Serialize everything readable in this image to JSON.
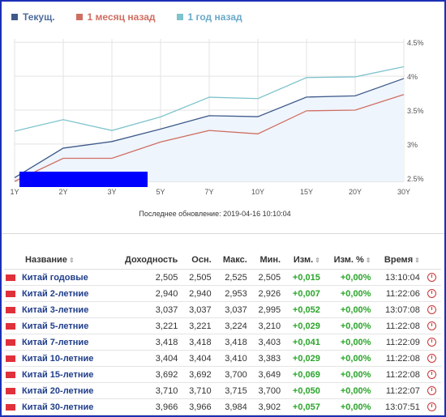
{
  "legend": {
    "current": "Текущ.",
    "month": "1 месяц назад",
    "year": "1 год назад"
  },
  "colors": {
    "current": "#3f5a8a",
    "month": "#d06e62",
    "year": "#7ec4cc",
    "area": "#eef5fd",
    "redaction": "#0000ff",
    "positive": "#2aa52a",
    "flag": "#e0303a"
  },
  "chart_data": {
    "type": "line",
    "categories": [
      "1Y",
      "2Y",
      "3Y",
      "5Y",
      "7Y",
      "10Y",
      "15Y",
      "20Y",
      "30Y"
    ],
    "y_ticks": [
      "4.5%",
      "4%",
      "3.5%",
      "3%",
      "2.5%"
    ],
    "ylim": [
      2.45,
      4.55
    ],
    "grid": true,
    "series": [
      {
        "name": "Текущ.",
        "key": "current",
        "values": [
          2.505,
          2.94,
          3.037,
          3.221,
          3.418,
          3.404,
          3.692,
          3.71,
          3.966
        ]
      },
      {
        "name": "1 месяц назад",
        "key": "month",
        "values": [
          2.45,
          2.79,
          2.79,
          3.03,
          3.2,
          3.15,
          3.49,
          3.5,
          3.73
        ]
      },
      {
        "name": "1 год назад",
        "key": "year",
        "values": [
          3.19,
          3.36,
          3.2,
          3.4,
          3.69,
          3.67,
          3.98,
          3.99,
          4.14
        ]
      }
    ]
  },
  "updated": "Последнее обновление: 2019-04-16 10:10:04",
  "table": {
    "headers": [
      "Название",
      "Доходность",
      "Осн.",
      "Макс.",
      "Мин.",
      "Изм.",
      "Изм. %",
      "Время"
    ],
    "rows": [
      {
        "name": "Китай годовые",
        "yield": "2,505",
        "prev": "2,505",
        "high": "2,525",
        "low": "2,505",
        "chg": "+0,015",
        "chg_pct": "+0,00%",
        "time": "13:10:04"
      },
      {
        "name": "Китай 2-летние",
        "yield": "2,940",
        "prev": "2,940",
        "high": "2,953",
        "low": "2,926",
        "chg": "+0,007",
        "chg_pct": "+0,00%",
        "time": "11:22:06"
      },
      {
        "name": "Китай 3-летние",
        "yield": "3,037",
        "prev": "3,037",
        "high": "3,037",
        "low": "2,995",
        "chg": "+0,052",
        "chg_pct": "+0,00%",
        "time": "13:07:08"
      },
      {
        "name": "Китай 5-летние",
        "yield": "3,221",
        "prev": "3,221",
        "high": "3,224",
        "low": "3,210",
        "chg": "+0,029",
        "chg_pct": "+0,00%",
        "time": "11:22:08"
      },
      {
        "name": "Китай 7-летние",
        "yield": "3,418",
        "prev": "3,418",
        "high": "3,418",
        "low": "3,403",
        "chg": "+0,041",
        "chg_pct": "+0,00%",
        "time": "11:22:09"
      },
      {
        "name": "Китай 10-летние",
        "yield": "3,404",
        "prev": "3,404",
        "high": "3,410",
        "low": "3,383",
        "chg": "+0,029",
        "chg_pct": "+0,00%",
        "time": "11:22:08"
      },
      {
        "name": "Китай 15-летние",
        "yield": "3,692",
        "prev": "3,692",
        "high": "3,700",
        "low": "3,649",
        "chg": "+0,069",
        "chg_pct": "+0,00%",
        "time": "11:22:08"
      },
      {
        "name": "Китай 20-летние",
        "yield": "3,710",
        "prev": "3,710",
        "high": "3,715",
        "low": "3,700",
        "chg": "+0,050",
        "chg_pct": "+0,00%",
        "time": "11:22:07"
      },
      {
        "name": "Китай 30-летние",
        "yield": "3,966",
        "prev": "3,966",
        "high": "3,984",
        "low": "3,902",
        "chg": "+0,057",
        "chg_pct": "+0,00%",
        "time": "13:07:51"
      }
    ]
  }
}
